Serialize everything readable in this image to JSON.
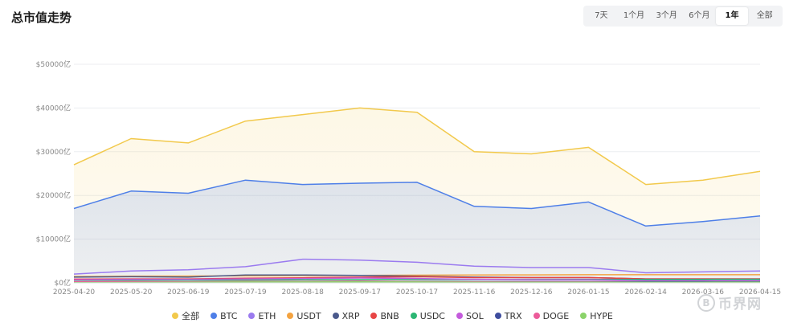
{
  "header": {
    "title": "总市值走势"
  },
  "ranges": [
    {
      "label": "7天",
      "active": false
    },
    {
      "label": "1个月",
      "active": false
    },
    {
      "label": "3个月",
      "active": false
    },
    {
      "label": "6个月",
      "active": false
    },
    {
      "label": "1年",
      "active": true
    },
    {
      "label": "全部",
      "active": false
    }
  ],
  "watermark": {
    "symbol": "B",
    "text": "币界网"
  },
  "chart_data": {
    "type": "area",
    "x": [
      "2025-04-20",
      "2025-05-20",
      "2025-06-19",
      "2025-07-19",
      "2025-08-18",
      "2025-09-17",
      "2025-10-17",
      "2025-11-16",
      "2025-12-16",
      "2026-01-15",
      "2026-02-14",
      "2026-03-16",
      "2026-04-15"
    ],
    "yticks": [
      "$0亿",
      "$10000亿",
      "$20000亿",
      "$30000亿",
      "$40000亿",
      "$50000亿"
    ],
    "ylim": [
      0,
      50000
    ],
    "grid": true,
    "legend_position": "bottom",
    "series": [
      {
        "name": "全部",
        "color": "#f2c94c",
        "fill": true,
        "values": [
          27000,
          33000,
          32000,
          37000,
          38500,
          40000,
          39000,
          30000,
          29500,
          31000,
          22500,
          23500,
          25500
        ]
      },
      {
        "name": "BTC",
        "color": "#4e7fe8",
        "fill": true,
        "values": [
          17000,
          21000,
          20500,
          23500,
          22500,
          22800,
          23000,
          17500,
          17000,
          18500,
          13000,
          14000,
          15300
        ]
      },
      {
        "name": "ETH",
        "color": "#9b7bef",
        "fill": false,
        "values": [
          2000,
          2700,
          3000,
          3700,
          5400,
          5200,
          4700,
          3800,
          3500,
          3500,
          2300,
          2500,
          2700
        ]
      },
      {
        "name": "USDT",
        "color": "#f4a340",
        "fill": false,
        "values": [
          1450,
          1500,
          1550,
          1600,
          1650,
          1700,
          1750,
          1800,
          1820,
          1850,
          1850,
          1850,
          1860
        ]
      },
      {
        "name": "XRP",
        "color": "#4b5a8c",
        "fill": false,
        "values": [
          1300,
          1400,
          1300,
          1800,
          1800,
          1700,
          1500,
          1300,
          1200,
          1200,
          900,
          900,
          900
        ]
      },
      {
        "name": "BNB",
        "color": "#e84545",
        "fill": false,
        "values": [
          850,
          900,
          900,
          1050,
          1150,
          1300,
          1400,
          1200,
          1200,
          1200,
          900,
          900,
          900
        ]
      },
      {
        "name": "USDC",
        "color": "#2bb673",
        "fill": false,
        "values": [
          600,
          620,
          640,
          650,
          680,
          720,
          750,
          760,
          760,
          770,
          780,
          790,
          800
        ]
      },
      {
        "name": "SOL",
        "color": "#c45bdc",
        "fill": false,
        "values": [
          700,
          800,
          800,
          900,
          1000,
          1100,
          1000,
          800,
          700,
          700,
          500,
          500,
          500
        ]
      },
      {
        "name": "TRX",
        "color": "#3e4d9e",
        "fill": false,
        "values": [
          230,
          250,
          260,
          300,
          320,
          320,
          310,
          280,
          280,
          280,
          260,
          260,
          260
        ]
      },
      {
        "name": "DOGE",
        "color": "#ec5b9a",
        "fill": false,
        "values": [
          250,
          300,
          250,
          350,
          320,
          380,
          300,
          220,
          200,
          200,
          150,
          150,
          150
        ]
      },
      {
        "name": "HYPE",
        "color": "#8bd36a",
        "fill": false,
        "values": [
          50,
          100,
          150,
          200,
          200,
          220,
          200,
          150,
          150,
          150,
          120,
          140,
          160
        ]
      }
    ]
  }
}
